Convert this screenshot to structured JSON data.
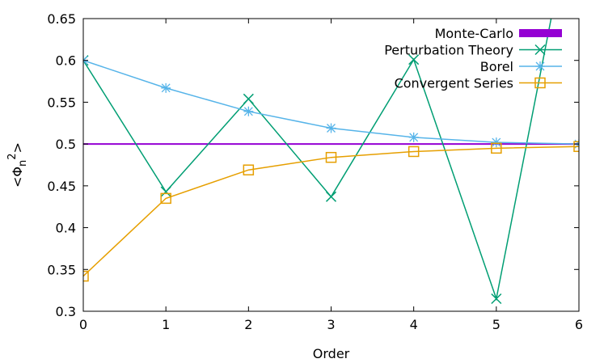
{
  "chart_data": {
    "type": "line",
    "xlabel": "Order",
    "ylabel": {
      "base": "<Φ",
      "sub": "n",
      "sup": "2",
      "tail": ">"
    },
    "xlim": [
      0,
      6
    ],
    "ylim": [
      0.3,
      0.65
    ],
    "xticks": [
      0,
      1,
      2,
      3,
      4,
      5,
      6
    ],
    "xtick_labels": [
      "0",
      "1",
      "2",
      "3",
      "4",
      "5",
      "6"
    ],
    "yticks": [
      0.3,
      0.35,
      0.4,
      0.45,
      0.5,
      0.55,
      0.6,
      0.65
    ],
    "ytick_labels": [
      "0.3",
      "0.35",
      "0.4",
      "0.45",
      "0.5",
      "0.55",
      "0.6",
      "0.65"
    ],
    "grid": false,
    "legend_position": "top-right",
    "series": [
      {
        "name": "Monte-Carlo",
        "color": "#9400d3",
        "style": "thick-line",
        "x": [
          0,
          6
        ],
        "y": [
          0.5,
          0.5
        ]
      },
      {
        "name": "Perturbation Theory",
        "color": "#009e73",
        "marker": "x",
        "x": [
          0,
          1,
          2,
          3,
          4,
          5,
          6
        ],
        "y": [
          0.6,
          0.443,
          0.554,
          0.437,
          0.601,
          0.315,
          0.82
        ]
      },
      {
        "name": "Borel",
        "color": "#56b4e9",
        "marker": "star",
        "x": [
          0,
          1,
          2,
          3,
          4,
          5,
          6
        ],
        "y": [
          0.6,
          0.567,
          0.539,
          0.519,
          0.508,
          0.502,
          0.5
        ]
      },
      {
        "name": "Convergent Series",
        "color": "#e69f00",
        "marker": "square",
        "x": [
          0,
          1,
          2,
          3,
          4,
          5,
          6
        ],
        "y": [
          0.342,
          0.435,
          0.469,
          0.484,
          0.491,
          0.495,
          0.497
        ]
      }
    ]
  }
}
